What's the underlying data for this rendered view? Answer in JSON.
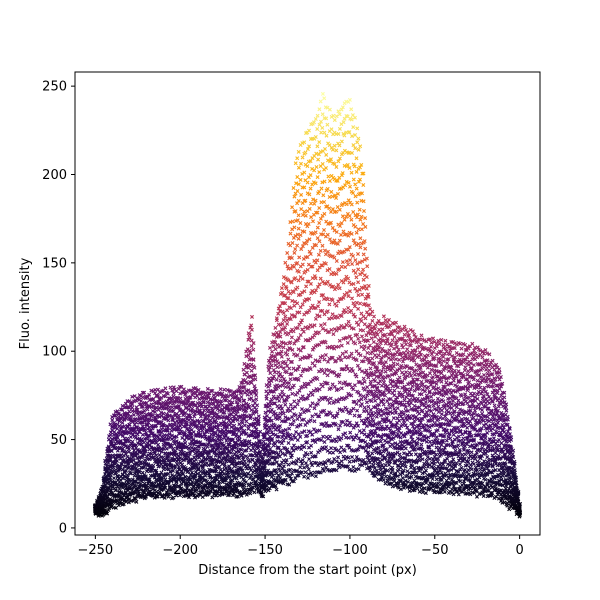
{
  "chart_data": {
    "type": "scatter",
    "title": "",
    "xlabel": "Distance from the start point (px)",
    "ylabel": "Fluo. intensity",
    "xlim": [
      -262,
      12
    ],
    "ylim": [
      -4,
      258
    ],
    "xticks": [
      -250,
      -200,
      -150,
      -100,
      -50,
      0
    ],
    "yticks": [
      0,
      50,
      100,
      150,
      200,
      250
    ],
    "marker": "x",
    "colormap": "inferno",
    "color_by": "y",
    "color_range": [
      5,
      245
    ],
    "grid": false,
    "legend": "none",
    "x_range_points": [
      -250,
      0
    ],
    "x_step": 1,
    "profile": {
      "description_x": [
        -250,
        -246,
        -243,
        -240,
        -230,
        -215,
        -200,
        -180,
        -170,
        -165,
        -162,
        -160,
        -158,
        -156,
        -152,
        -148,
        -142,
        -136,
        -132,
        -128,
        -124,
        -120,
        -116,
        -112,
        -108,
        -104,
        -100,
        -96,
        -92,
        -90,
        -88,
        -85,
        -80,
        -75,
        -70,
        -60,
        -50,
        -40,
        -30,
        -20,
        -12,
        -8,
        -4,
        -1,
        0
      ],
      "top_y": [
        12,
        22,
        45,
        63,
        72,
        77,
        78,
        77,
        76,
        80,
        92,
        110,
        120,
        90,
        40,
        95,
        125,
        160,
        205,
        218,
        226,
        232,
        244,
        235,
        232,
        240,
        242,
        228,
        200,
        152,
        125,
        115,
        118,
        116,
        113,
        108,
        105,
        104,
        103,
        99,
        90,
        70,
        45,
        20,
        12
      ],
      "bottom_y": [
        9,
        8,
        9,
        12,
        16,
        18,
        19,
        19,
        19,
        19,
        20,
        21,
        21,
        22,
        19,
        22,
        24,
        26,
        28,
        30,
        30,
        31,
        32,
        33,
        33,
        34,
        34,
        34,
        35,
        35,
        33,
        30,
        27,
        25,
        23,
        22,
        21,
        21,
        20,
        19,
        17,
        14,
        11,
        9,
        8
      ]
    }
  }
}
